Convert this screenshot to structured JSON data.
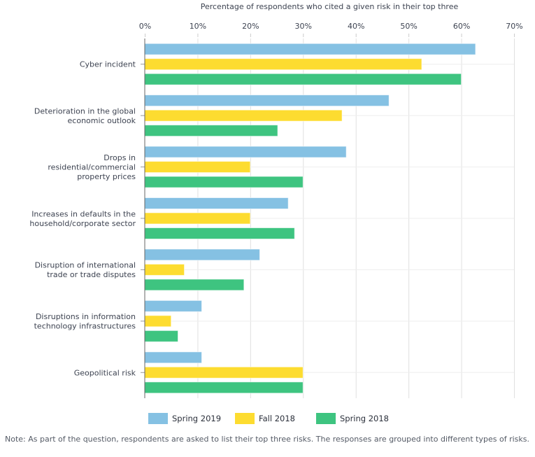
{
  "chart_data": {
    "type": "bar",
    "orientation": "horizontal",
    "title": "Percentage of respondents who cited a given risk in their top three",
    "xlabel": "Percentage of respondents who cited a given risk in their top three",
    "ylabel": "",
    "xlim": [
      0,
      70
    ],
    "x_ticks": [
      "0%",
      "10%",
      "20%",
      "30%",
      "40%",
      "50%",
      "60%",
      "70%"
    ],
    "x_tick_values": [
      0,
      10,
      20,
      30,
      40,
      50,
      60,
      70
    ],
    "grid": true,
    "legend_position": "bottom-left",
    "categories": [
      [
        "Cyber incident"
      ],
      [
        "Deterioration in the global",
        "economic outlook"
      ],
      [
        "Drops in",
        "residential/commercial",
        "property prices"
      ],
      [
        "Increases in defaults in the",
        "household/corporate sector"
      ],
      [
        "Disruption of international",
        "trade or trade disputes"
      ],
      [
        "Disruptions in information",
        "technology infrastructures"
      ],
      [
        "Geopolitical risk"
      ]
    ],
    "series": [
      {
        "name": "Spring 2019",
        "color": "#85c1e3",
        "values": [
          62.7,
          46.3,
          38.2,
          27.2,
          21.8,
          10.8,
          10.8
        ]
      },
      {
        "name": "Fall 2018",
        "color": "#fddc30",
        "values": [
          52.5,
          37.4,
          20.0,
          20.0,
          7.5,
          5.0,
          30.0
        ]
      },
      {
        "name": "Spring 2018",
        "color": "#3ec480",
        "values": [
          60.0,
          25.2,
          30.0,
          28.4,
          18.8,
          6.3,
          30.0
        ]
      }
    ]
  },
  "legend": [
    {
      "label": "Spring 2019",
      "color": "#85c1e3"
    },
    {
      "label": "Fall 2018",
      "color": "#fddc30"
    },
    {
      "label": "Spring 2018",
      "color": "#3ec480"
    }
  ],
  "note": "Note: As part of the question, respondents are asked to list their top three risks. The responses are grouped into different types of risks."
}
